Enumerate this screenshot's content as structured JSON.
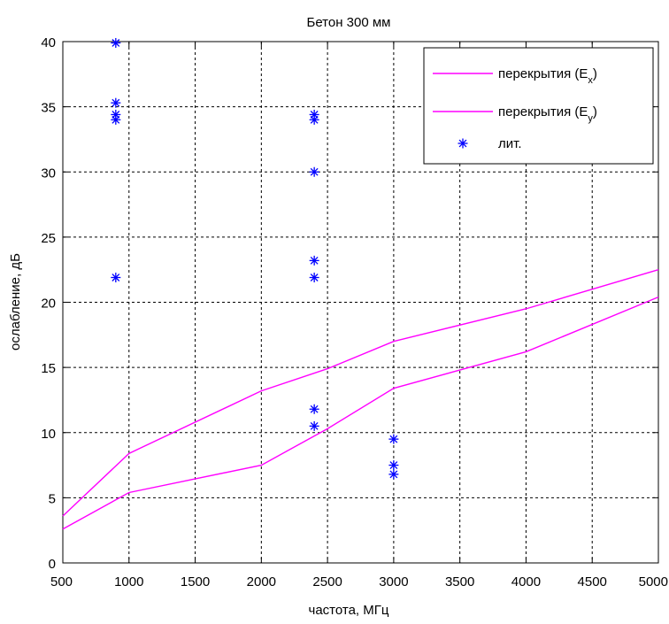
{
  "chart_data": {
    "type": "line",
    "title": "Бетон 300 мм",
    "xlabel": "частота, МГц",
    "ylabel": "ослабление, дБ",
    "xlim": [
      500,
      5000
    ],
    "ylim": [
      0,
      40
    ],
    "xticks": [
      500,
      1000,
      1500,
      2000,
      2500,
      3000,
      3500,
      4000,
      4500,
      5000
    ],
    "yticks": [
      0,
      5,
      10,
      15,
      20,
      25,
      30,
      35,
      40
    ],
    "grid": true,
    "legend_position": "top-right",
    "series": [
      {
        "name": "перекрытия (E",
        "subscript": "x",
        "suffix": ")",
        "type": "line",
        "color": "#ff00ff",
        "x": [
          500,
          1000,
          2000,
          2500,
          3000,
          4000,
          5000
        ],
        "y": [
          3.6,
          8.4,
          13.2,
          14.9,
          17.0,
          19.5,
          22.5
        ]
      },
      {
        "name": "перекрытия (E",
        "subscript": "y",
        "suffix": ")",
        "type": "line",
        "color": "#ff00ff",
        "x": [
          500,
          1000,
          2000,
          2500,
          3000,
          4000,
          5000
        ],
        "y": [
          2.6,
          5.4,
          7.5,
          10.3,
          13.4,
          16.2,
          20.4
        ]
      },
      {
        "name": "лит.",
        "type": "scatter",
        "marker": "asterisk",
        "color": "#0000ff",
        "x": [
          900,
          900,
          900,
          900,
          900,
          2400,
          2400,
          2400,
          2400,
          2400,
          2400,
          2400,
          3000,
          3000,
          3000
        ],
        "y": [
          39.9,
          35.3,
          34.4,
          34.0,
          21.9,
          34.4,
          34.0,
          30.0,
          23.2,
          21.9,
          11.8,
          10.5,
          9.5,
          7.5,
          6.8
        ]
      }
    ]
  }
}
